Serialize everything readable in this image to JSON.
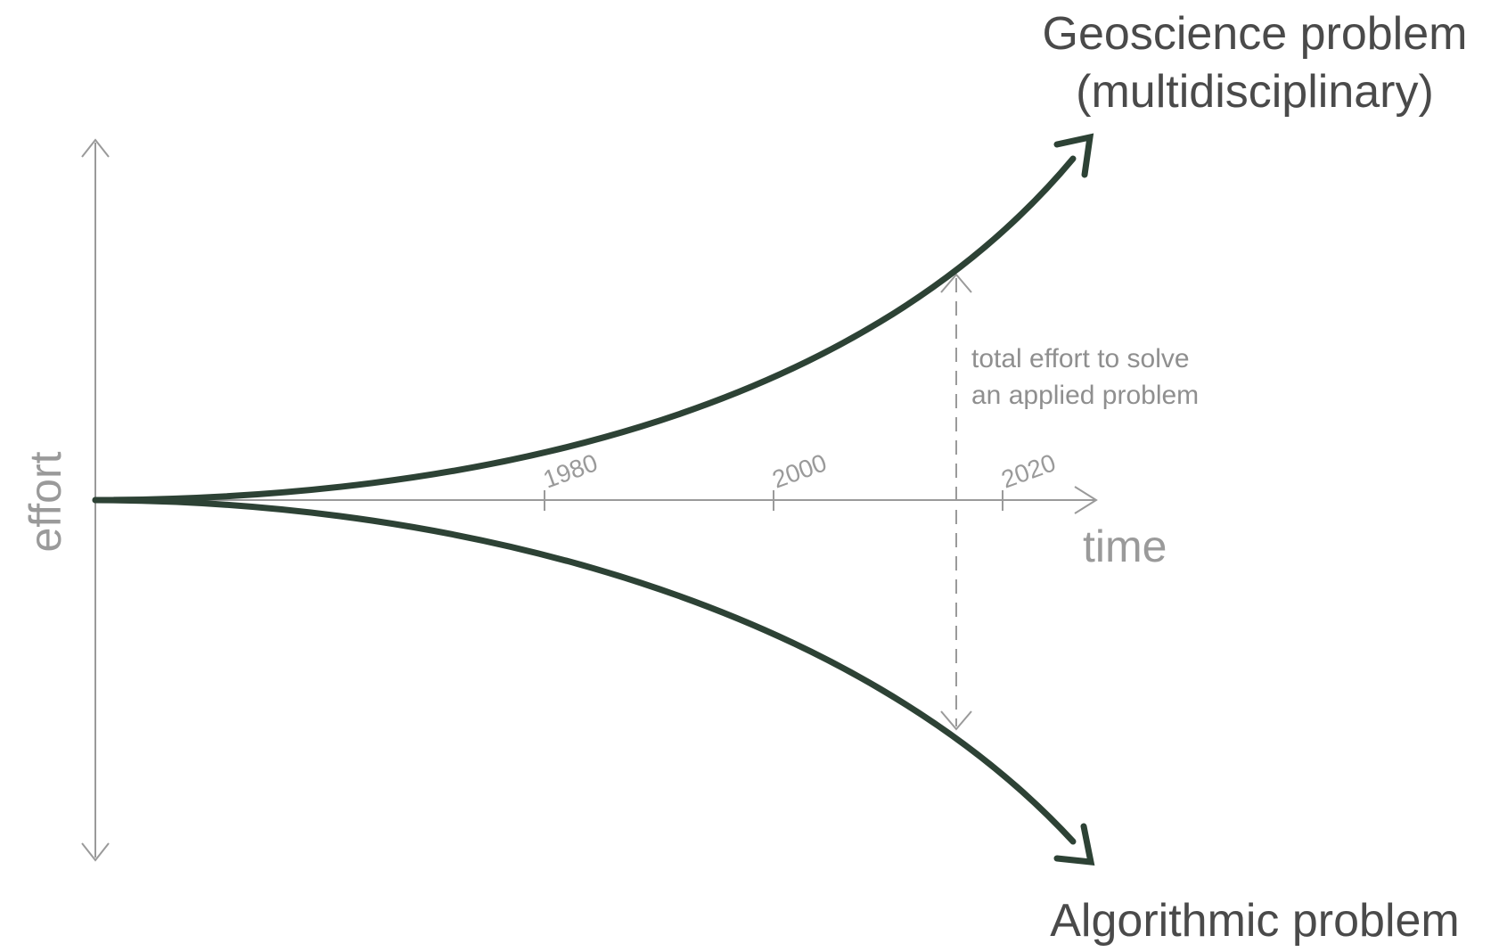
{
  "diagram": {
    "x_axis_label": "time",
    "y_axis_label": "effort",
    "ticks": [
      "1980",
      "2000",
      "2020"
    ],
    "upper_curve": {
      "label_line1": "Geoscience problem",
      "label_line2": "(multidisciplinary)"
    },
    "lower_curve": {
      "label": "Algorithmic problem"
    },
    "annotation": {
      "line1": "total effort to solve",
      "line2": "an applied problem"
    },
    "colors": {
      "curve": "#2d4235",
      "axis": "#9a9a9a",
      "label": "#4a4a4a"
    }
  }
}
